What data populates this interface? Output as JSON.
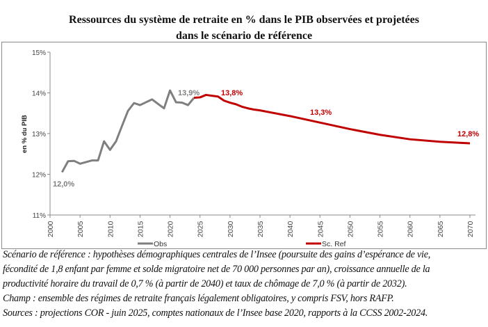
{
  "chart_data": {
    "type": "line",
    "title": "Ressources du système de retraite en % dans le PIB observées et projetées dans le scénario de référence",
    "title_lines": [
      "Ressources du système de retraite en % dans le PIB observées et projetées",
      "dans le scénario de référence"
    ],
    "xlabel": "",
    "ylabel": "en % du PIB",
    "xlim": [
      2000,
      2070
    ],
    "ylim": [
      11,
      15
    ],
    "x_ticks": [
      "2000",
      "2005",
      "2010",
      "2015",
      "2020",
      "2025",
      "2030",
      "2035",
      "2040",
      "2045",
      "2050",
      "2055",
      "2060",
      "2065",
      "2070"
    ],
    "y_ticks": [
      "11%",
      "12%",
      "13%",
      "14%",
      "15%"
    ],
    "grid": false,
    "legend_position": "bottom",
    "series": [
      {
        "name": "Obs",
        "color": "#7f7f7f",
        "x": [
          2002,
          2003,
          2004,
          2005,
          2006,
          2007,
          2008,
          2009,
          2010,
          2011,
          2012,
          2013,
          2014,
          2015,
          2016,
          2017,
          2018,
          2019,
          2020,
          2021,
          2022,
          2023,
          2024
        ],
        "y": [
          12.05,
          12.32,
          12.33,
          12.26,
          12.3,
          12.34,
          12.34,
          12.81,
          12.6,
          12.81,
          13.19,
          13.56,
          13.75,
          13.7,
          13.77,
          13.84,
          13.73,
          13.62,
          14.06,
          13.77,
          13.76,
          13.7,
          13.88
        ]
      },
      {
        "name": "Sc. Ref",
        "color": "#c00000",
        "x": [
          2024,
          2025,
          2026,
          2027,
          2028,
          2029,
          2030,
          2031,
          2032,
          2033,
          2034,
          2035,
          2040,
          2045,
          2050,
          2055,
          2060,
          2065,
          2070
        ],
        "y": [
          13.88,
          13.89,
          13.95,
          13.93,
          13.91,
          13.81,
          13.76,
          13.72,
          13.66,
          13.62,
          13.59,
          13.57,
          13.43,
          13.27,
          13.11,
          12.97,
          12.86,
          12.8,
          12.76
        ]
      }
    ],
    "annotations": [
      {
        "text": "12,0%",
        "x": 2002,
        "y": 12.05,
        "color": "#7f7f7f"
      },
      {
        "text": "13,9%",
        "x": 2022,
        "y": 14.0,
        "color": "#7f7f7f"
      },
      {
        "text": "13,8%",
        "x": 2030,
        "y": 14.0,
        "color": "#c00000"
      },
      {
        "text": "13,3%",
        "x": 2045,
        "y": 13.5,
        "color": "#c00000"
      },
      {
        "text": "12,8%",
        "x": 2069,
        "y": 13.0,
        "color": "#c00000"
      }
    ]
  },
  "notes": [
    "Scénario de référence : hypothèses démographiques centrales de l’Insee (poursuite des gains d’espérance de vie,",
    "fécondité de 1,8 enfant par femme et solde migratoire net de 70 000 personnes par an), croissance annuelle de la",
    "productivité horaire du travail de 0,7 % (à partir de 2040) et taux de chômage de 7,0 % (à partir de 2032).",
    "Champ : ensemble des régimes de retraite français légalement obligatoires, y compris FSV, hors RAFP.",
    "Sources : projections COR - juin 2025, comptes nationaux de l’Insee base 2020, rapports à la CCSS 2002-2024."
  ]
}
